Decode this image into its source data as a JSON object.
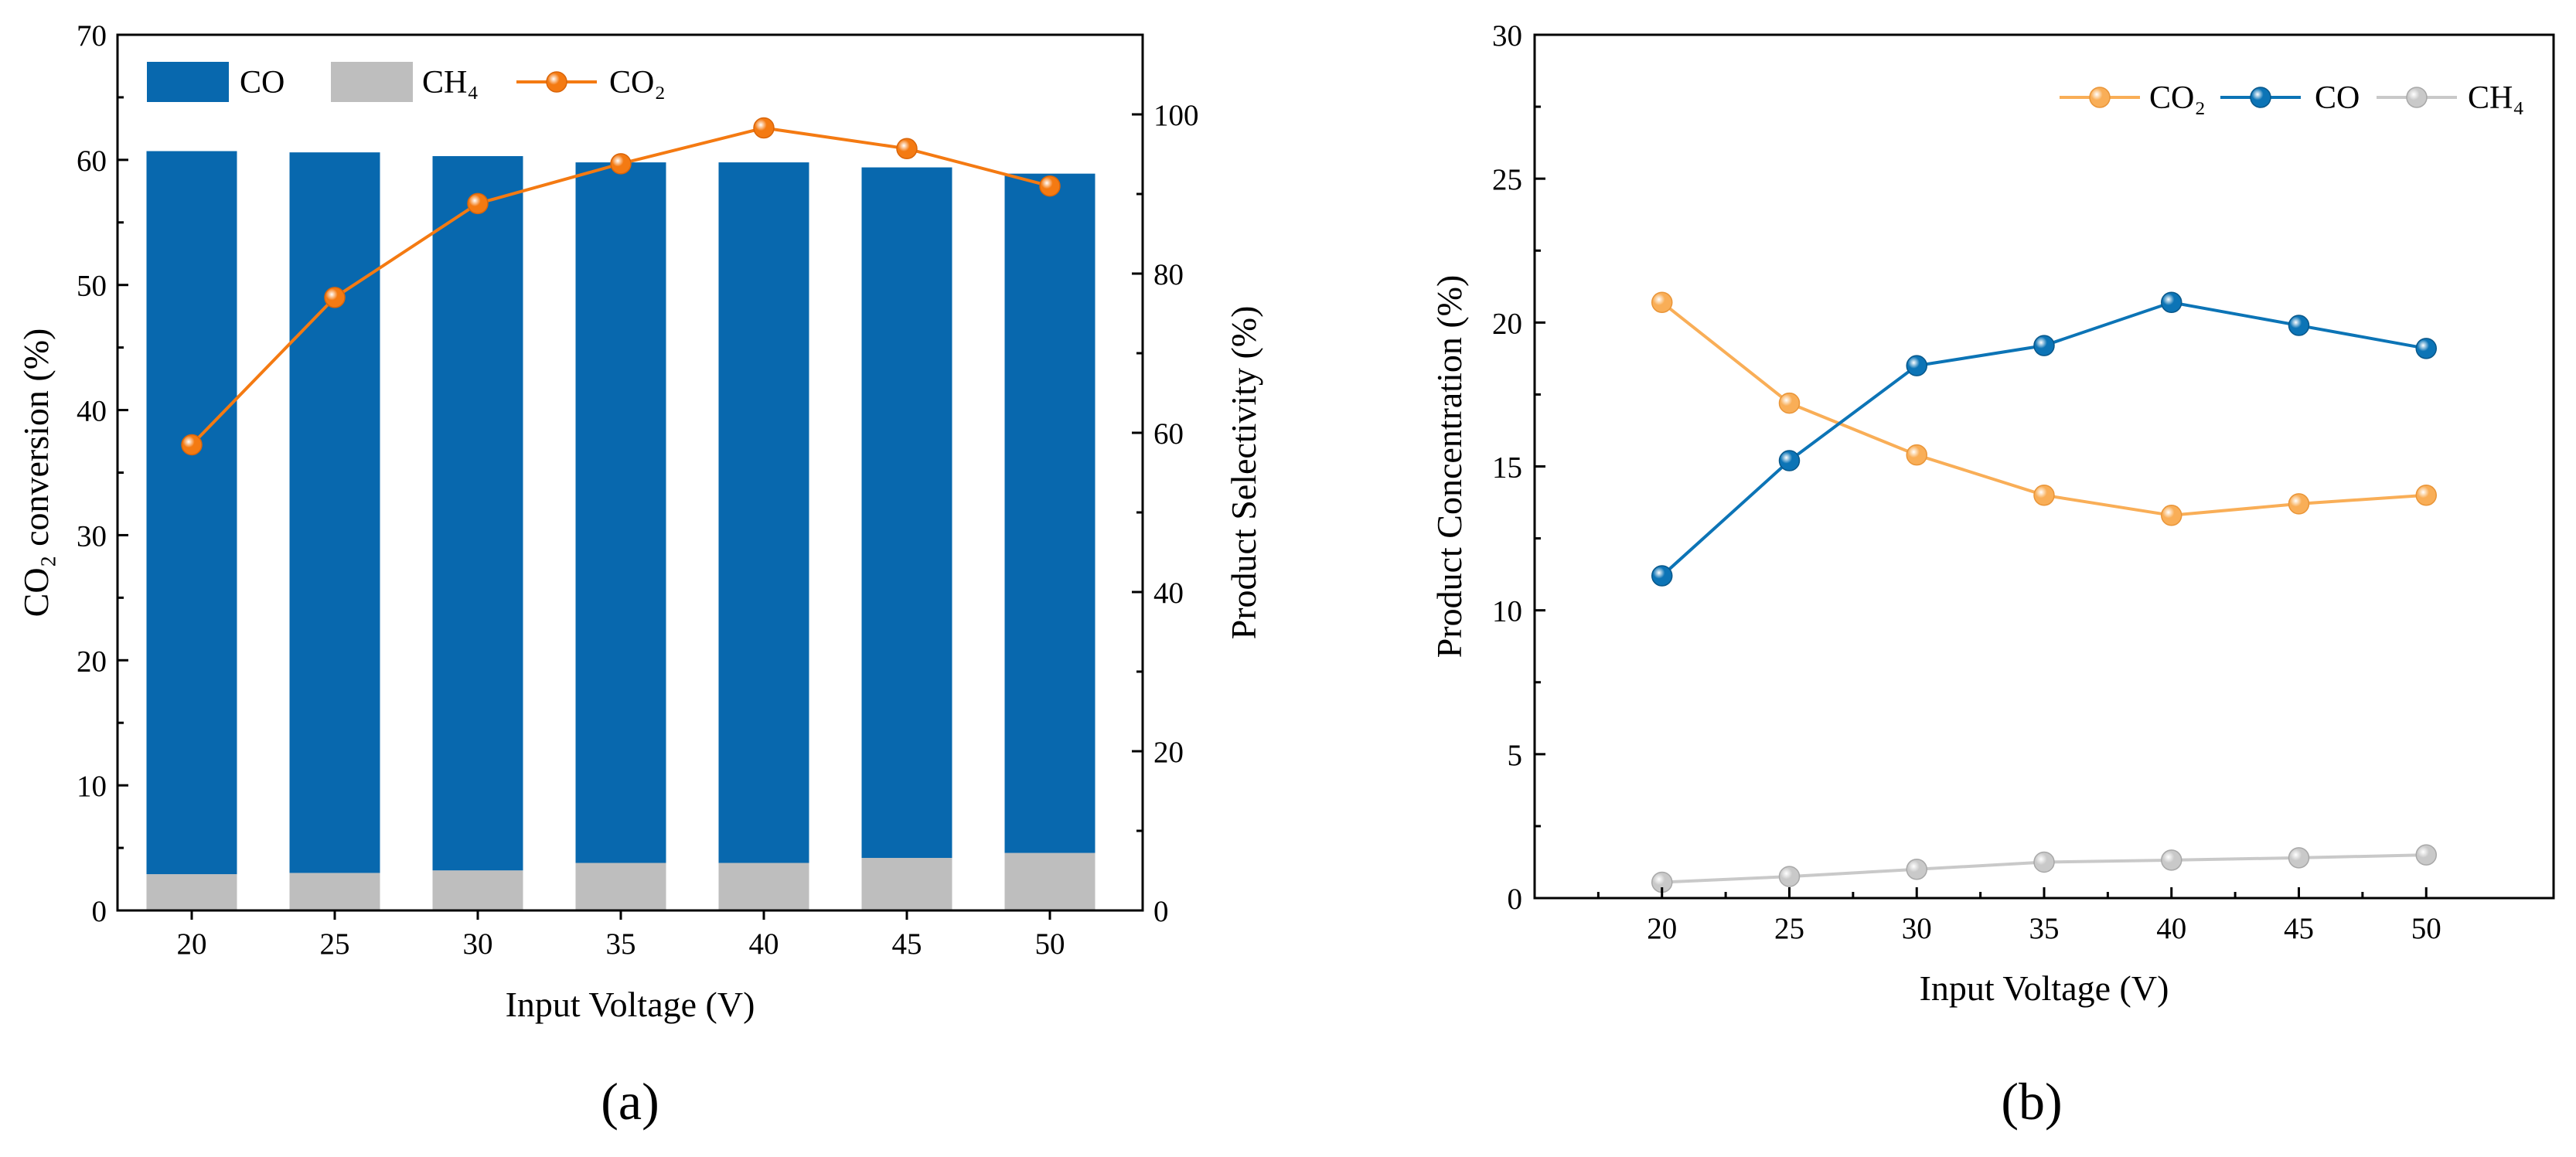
{
  "colors": {
    "co_bar": "#0868ae",
    "ch4_bar": "#bebebe",
    "co2_line_a": "#f47a12",
    "co2_line_b": "#f9ae57",
    "co_line_b": "#0c74b6",
    "ch4_line_b": "#c9c9c9",
    "axis": "#000000"
  },
  "chart_data": [
    {
      "panel": "(a)",
      "type": "bar",
      "stacked": true,
      "categories": [
        "20",
        "25",
        "30",
        "35",
        "40",
        "45",
        "50"
      ],
      "series": [
        {
          "name": "CO",
          "axis": "left",
          "values": [
            57.8,
            57.6,
            57.1,
            56.0,
            56.0,
            55.2,
            54.3
          ]
        },
        {
          "name": "CH₄",
          "axis": "left",
          "values": [
            2.9,
            3.0,
            3.2,
            3.8,
            3.8,
            4.2,
            4.6
          ]
        }
      ],
      "line_series": [
        {
          "name": "CO₂",
          "axis": "right",
          "type": "line",
          "values": [
            58.5,
            77.0,
            88.8,
            93.8,
            98.3,
            95.7,
            91.0
          ]
        }
      ],
      "xlabel": "Input Voltage (V)",
      "ylabel": "CO₂ conversion (%)",
      "ylabel_right": "Product Selectivity (%)",
      "ylim": [
        0,
        70
      ],
      "ylim_right": [
        0,
        110
      ],
      "yticks": [
        "0",
        "10",
        "20",
        "30",
        "40",
        "50",
        "60",
        "70"
      ],
      "yticks_right": [
        "0",
        "20",
        "40",
        "60",
        "80",
        "100"
      ],
      "legend": [
        "CO",
        "CH₄",
        "CO₂"
      ],
      "legend_position": "top"
    },
    {
      "panel": "(b)",
      "type": "line",
      "x": [
        20,
        25,
        30,
        35,
        40,
        45,
        50
      ],
      "xticks": [
        "20",
        "25",
        "30",
        "35",
        "40",
        "45",
        "50"
      ],
      "series": [
        {
          "name": "CO₂",
          "values": [
            20.7,
            17.2,
            15.4,
            14.0,
            13.3,
            13.7,
            14.0
          ]
        },
        {
          "name": "CO",
          "values": [
            11.2,
            15.2,
            18.5,
            19.2,
            20.7,
            19.9,
            19.1
          ]
        },
        {
          "name": "CH₄",
          "values": [
            0.55,
            0.75,
            1.0,
            1.25,
            1.32,
            1.4,
            1.5
          ]
        }
      ],
      "xlabel": "Input Voltage (V)",
      "ylabel": "Product Concentration (%)",
      "ylim": [
        0,
        30
      ],
      "xlim": [
        15,
        55
      ],
      "yticks": [
        "0",
        "5",
        "10",
        "15",
        "20",
        "25",
        "30"
      ],
      "legend": [
        "CO₂",
        "CO",
        "CH₄"
      ],
      "legend_position": "top-right"
    }
  ]
}
